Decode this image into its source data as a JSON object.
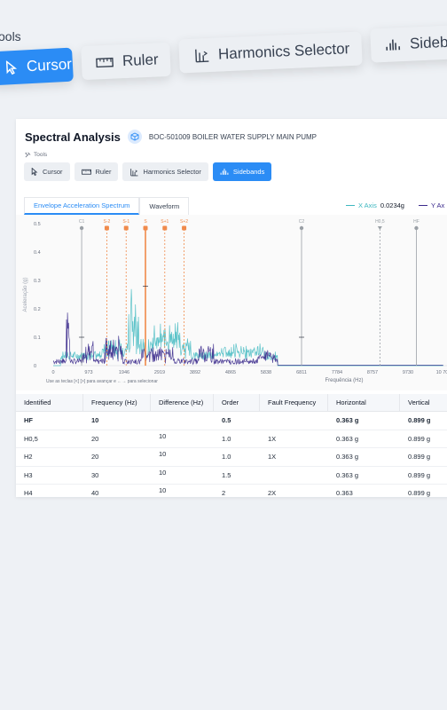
{
  "zoom_toolbar": {
    "label": "ools",
    "buttons": [
      {
        "label": "Cursor",
        "icon": "cursor-icon",
        "active": true
      },
      {
        "label": "Ruler",
        "icon": "ruler-icon",
        "active": false
      },
      {
        "label": "Harmonics Selector",
        "icon": "harmonics-icon",
        "active": false
      },
      {
        "label": "Sideb",
        "icon": "sidebands-icon",
        "active": false
      }
    ]
  },
  "header": {
    "title": "Spectral Analysis",
    "asset_icon": "cube-icon",
    "asset": "BOC-501009 BOILER WATER SUPPLY MAIN PUMP"
  },
  "tools": {
    "label": "Tools",
    "buttons": [
      {
        "label": "Cursor",
        "icon": "cursor-icon",
        "active": false
      },
      {
        "label": "Ruler",
        "icon": "ruler-icon",
        "active": false
      },
      {
        "label": "Harmonics Selector",
        "icon": "harmonics-icon",
        "active": false
      },
      {
        "label": "Sidebands",
        "icon": "sidebands-icon",
        "active": true
      }
    ]
  },
  "tabs": [
    {
      "label": "Envelope Acceleration Spectrum",
      "active": true
    },
    {
      "label": "Waveform",
      "active": false
    }
  ],
  "legend": {
    "x_axis_label": "X Axis",
    "x_axis_value": "0.0234g",
    "y_axis_label": "Y Ax",
    "x_color": "#3fb8c0",
    "y_color": "#3b2a8c"
  },
  "chart_data": {
    "type": "line",
    "ylabel": "Aceleração (g)",
    "xlabel": "Frequência (Hz)",
    "ylim": [
      0,
      0.5
    ],
    "yticks": [
      "0.5",
      "0.4",
      "0.3",
      "0.2",
      "0.1",
      "0"
    ],
    "xticks": [
      "0",
      "973",
      "1946",
      "2919",
      "3892",
      "4865",
      "5838",
      "6811",
      "7784",
      "8757",
      "9730",
      "10 703"
    ],
    "hint": "Use as teclas [<] [>] para avançar e ←→ para selecionar",
    "markers": [
      {
        "label": "C1",
        "x": 780,
        "kind": "cursor"
      },
      {
        "label": "S-2",
        "x": 1470,
        "kind": "sideband"
      },
      {
        "label": "S-1",
        "x": 2000,
        "kind": "sideband"
      },
      {
        "label": "S",
        "x": 2530,
        "kind": "sideband-center"
      },
      {
        "label": "S+1",
        "x": 3060,
        "kind": "sideband"
      },
      {
        "label": "S+2",
        "x": 3590,
        "kind": "sideband"
      },
      {
        "label": "C2",
        "x": 6811,
        "kind": "cursor"
      },
      {
        "label": "H0,5",
        "x": 8960,
        "kind": "harmonic"
      },
      {
        "label": "HF",
        "x": 9960,
        "kind": "cursor"
      }
    ],
    "series": [
      {
        "name": "X Axis",
        "color": "#3fb8c0"
      },
      {
        "name": "Y Axis",
        "color": "#3b2a8c"
      }
    ]
  },
  "table": {
    "columns": [
      "Identified",
      "Frequency (Hz)",
      "Difference (Hz)",
      "Order",
      "Fault Frequency",
      "Horizontal",
      "Vertical"
    ],
    "rows": [
      {
        "id": "HF",
        "freq": "10",
        "diff": "",
        "order": "0.5",
        "fault": "",
        "h": "0.363 g",
        "v": "0.899 g"
      },
      {
        "id": "H0,5",
        "freq": "20",
        "diff": "10",
        "order": "1.0",
        "fault": "1X",
        "h": "0.363 g",
        "v": "0.899 g"
      },
      {
        "id": "H2",
        "freq": "20",
        "diff": "10",
        "order": "1.0",
        "fault": "1X",
        "h": "0.363 g",
        "v": "0.899 g"
      },
      {
        "id": "H3",
        "freq": "30",
        "diff": "10",
        "order": "1.5",
        "fault": "",
        "h": "0.363 g",
        "v": "0.899 g"
      },
      {
        "id": "H4",
        "freq": "40",
        "diff": "10",
        "order": "2",
        "fault": "2X",
        "h": "0.363",
        "v": "0.899 g"
      }
    ]
  }
}
